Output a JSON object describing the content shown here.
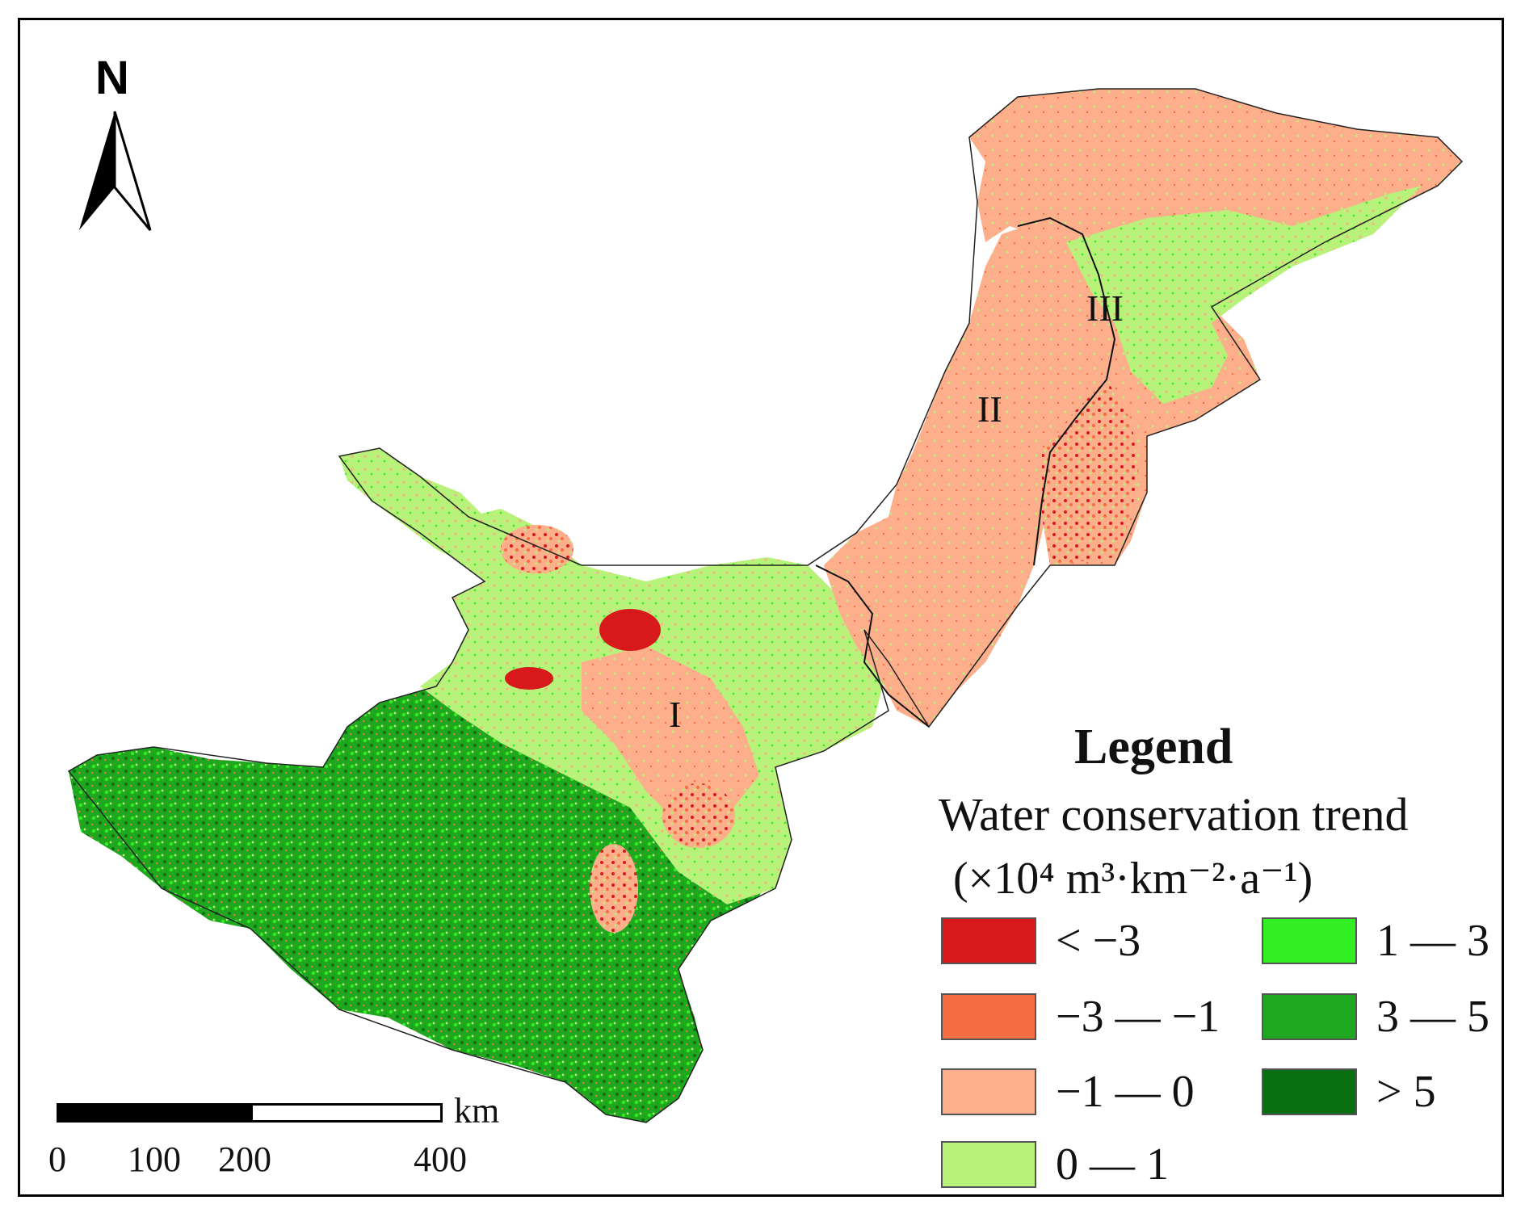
{
  "map": {
    "north_arrow_letter": "N",
    "region_labels": [
      "I",
      "II",
      "III"
    ],
    "scale_bar": {
      "unit": "km",
      "ticks": [
        "0",
        "100",
        "200",
        "400"
      ]
    }
  },
  "legend": {
    "title": "Legend",
    "subtitle_line1": "Water conservation trend",
    "subtitle_line2": "(×10⁴ m³·km⁻²·a⁻¹)",
    "items": [
      {
        "label": "< −3",
        "color": "#d7191c"
      },
      {
        "label": "−3 — −1",
        "color": "#f46d43"
      },
      {
        "label": "−1 — 0",
        "color": "#fdae8a"
      },
      {
        "label": "0 — 1",
        "color": "#b8f27a"
      },
      {
        "label": "1 — 3",
        "color": "#33ee22"
      },
      {
        "label": "3 — 5",
        "color": "#1fa81f"
      },
      {
        "label": "> 5",
        "color": "#0a6e12"
      }
    ]
  }
}
